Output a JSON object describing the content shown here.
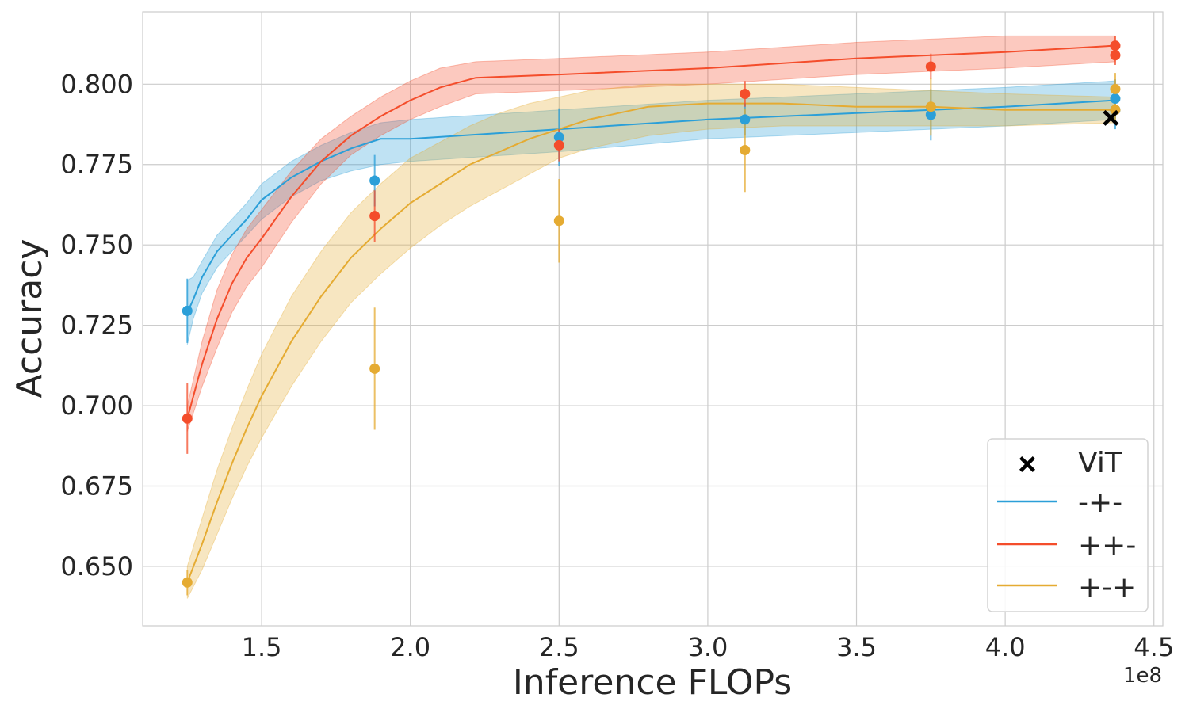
{
  "chart_data": {
    "type": "line",
    "xlabel": "Inference FLOPs",
    "ylabel": "Accuracy",
    "x_multiplier_label": "1e8",
    "xlim": [
      1.1,
      4.53
    ],
    "ylim": [
      0.6315,
      0.8225
    ],
    "x_ticks": [
      1.5,
      2.0,
      2.5,
      3.0,
      3.5,
      4.0,
      4.5
    ],
    "x_tick_labels": [
      "1.5",
      "2.0",
      "2.5",
      "3.0",
      "3.5",
      "4.0",
      "4.5"
    ],
    "y_ticks": [
      0.65,
      0.675,
      0.7,
      0.725,
      0.75,
      0.775,
      0.8
    ],
    "y_tick_labels": [
      "0.650",
      "0.675",
      "0.700",
      "0.725",
      "0.750",
      "0.775",
      "0.800"
    ],
    "grid": true,
    "legend_position": "bottom-right",
    "legend": [
      {
        "label": "ViT",
        "kind": "marker",
        "color": "#000000"
      },
      {
        "label": "-+-",
        "kind": "line",
        "color": "#2b9fd8"
      },
      {
        "label": "++-",
        "kind": "line",
        "color": "#f44d2b"
      },
      {
        "label": "+-+",
        "kind": "line",
        "color": "#e5ab32"
      }
    ],
    "series": [
      {
        "name": "-+-",
        "color": "#2b9fd8",
        "curve": {
          "x": [
            1.25,
            1.27,
            1.3,
            1.35,
            1.4,
            1.45,
            1.5,
            1.6,
            1.7,
            1.8,
            1.9,
            2.0,
            2.5,
            3.0,
            3.5,
            4.0,
            4.37
          ],
          "y": [
            0.729,
            0.733,
            0.74,
            0.748,
            0.753,
            0.758,
            0.764,
            0.771,
            0.776,
            0.78,
            0.783,
            0.783,
            0.786,
            0.789,
            0.791,
            0.793,
            0.795
          ],
          "lower": [
            0.719,
            0.727,
            0.735,
            0.743,
            0.748,
            0.753,
            0.758,
            0.765,
            0.77,
            0.773,
            0.775,
            0.776,
            0.779,
            0.783,
            0.785,
            0.787,
            0.789
          ],
          "upper": [
            0.739,
            0.74,
            0.745,
            0.753,
            0.758,
            0.763,
            0.769,
            0.776,
            0.781,
            0.785,
            0.788,
            0.789,
            0.792,
            0.795,
            0.797,
            0.799,
            0.801
          ]
        },
        "points": {
          "x": [
            1.25,
            1.88,
            2.5,
            3.125,
            3.75,
            4.37,
            4.37
          ],
          "y": [
            0.7295,
            0.77,
            0.7835,
            0.789,
            0.7905,
            0.7955,
            0.792
          ],
          "err": [
            0.01,
            0.008,
            0.009,
            0.005,
            0.008,
            0.006,
            0.006
          ]
        }
      },
      {
        "name": "++-",
        "color": "#f44d2b",
        "curve": {
          "x": [
            1.25,
            1.3,
            1.35,
            1.4,
            1.45,
            1.5,
            1.6,
            1.7,
            1.8,
            1.9,
            2.0,
            2.1,
            2.22,
            2.5,
            3.0,
            3.5,
            4.0,
            4.37
          ],
          "y": [
            0.696,
            0.713,
            0.727,
            0.738,
            0.746,
            0.752,
            0.765,
            0.776,
            0.784,
            0.79,
            0.795,
            0.799,
            0.802,
            0.803,
            0.805,
            0.808,
            0.81,
            0.812
          ],
          "lower": [
            0.692,
            0.706,
            0.718,
            0.729,
            0.737,
            0.743,
            0.757,
            0.769,
            0.778,
            0.784,
            0.789,
            0.793,
            0.797,
            0.798,
            0.8,
            0.803,
            0.805,
            0.807
          ],
          "upper": [
            0.7,
            0.72,
            0.736,
            0.747,
            0.755,
            0.761,
            0.773,
            0.783,
            0.79,
            0.796,
            0.801,
            0.805,
            0.807,
            0.808,
            0.81,
            0.813,
            0.815,
            0.815
          ]
        },
        "points": {
          "x": [
            1.25,
            1.88,
            2.5,
            3.125,
            3.75,
            4.37,
            4.37
          ],
          "y": [
            0.696,
            0.759,
            0.781,
            0.797,
            0.8055,
            0.812,
            0.809
          ],
          "err": [
            0.011,
            0.008,
            0.005,
            0.004,
            0.004,
            0.003,
            0.003
          ]
        }
      },
      {
        "name": "+-+",
        "color": "#e5ab32",
        "curve": {
          "x": [
            1.25,
            1.3,
            1.35,
            1.4,
            1.45,
            1.5,
            1.6,
            1.7,
            1.8,
            1.9,
            2.0,
            2.1,
            2.2,
            2.3,
            2.4,
            2.5,
            2.6,
            2.8,
            3.0,
            3.25,
            3.5,
            3.75,
            4.0,
            4.37
          ],
          "y": [
            0.645,
            0.657,
            0.67,
            0.682,
            0.693,
            0.703,
            0.72,
            0.734,
            0.746,
            0.755,
            0.763,
            0.769,
            0.775,
            0.779,
            0.783,
            0.786,
            0.789,
            0.793,
            0.794,
            0.794,
            0.793,
            0.793,
            0.792,
            0.792
          ],
          "lower": [
            0.64,
            0.649,
            0.66,
            0.671,
            0.681,
            0.69,
            0.706,
            0.72,
            0.732,
            0.741,
            0.749,
            0.756,
            0.762,
            0.767,
            0.772,
            0.777,
            0.78,
            0.784,
            0.786,
            0.787,
            0.787,
            0.787,
            0.787,
            0.788
          ],
          "upper": [
            0.65,
            0.665,
            0.68,
            0.693,
            0.705,
            0.716,
            0.734,
            0.748,
            0.76,
            0.769,
            0.777,
            0.782,
            0.787,
            0.791,
            0.794,
            0.796,
            0.798,
            0.8,
            0.8,
            0.8,
            0.799,
            0.798,
            0.797,
            0.796
          ]
        },
        "points": {
          "x": [
            1.25,
            1.88,
            2.5,
            3.125,
            3.75,
            4.37,
            4.37
          ],
          "y": [
            0.645,
            0.7115,
            0.7575,
            0.7795,
            0.793,
            0.7985,
            0.792
          ],
          "err": [
            0.004,
            0.019,
            0.013,
            0.013,
            0.009,
            0.005,
            0.004
          ]
        }
      }
    ],
    "vit_marker": {
      "label": "ViT",
      "x": 4.355,
      "y": 0.7895,
      "color": "#000000"
    }
  }
}
